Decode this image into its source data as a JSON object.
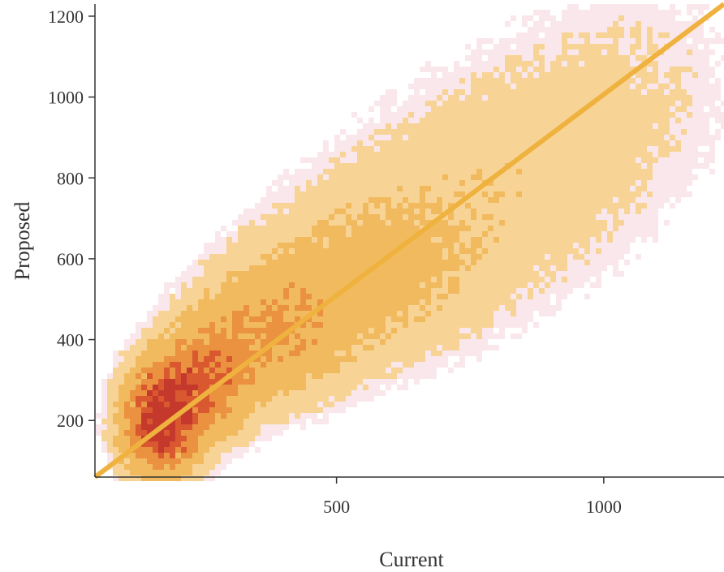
{
  "chart_data": {
    "type": "heatmap",
    "xlabel": "Current",
    "ylabel": "Proposed",
    "xlim": [
      48,
      1225
    ],
    "ylim": [
      60,
      1230
    ],
    "x_ticks": [
      500,
      1000
    ],
    "y_ticks": [
      200,
      400,
      600,
      800,
      1000,
      1200
    ],
    "x_tick_labels": [
      "500",
      "1000"
    ],
    "y_tick_labels": [
      "200",
      "400",
      "600",
      "800",
      "1000",
      "1200"
    ],
    "grid": false,
    "legend": "none",
    "density_colors": [
      "#f9e1e6",
      "#f6d08c",
      "#f0b450",
      "#e8892f",
      "#d64a1d",
      "#c0281a"
    ],
    "density_clusters": [
      {
        "x": 170,
        "y": 200,
        "sx": 45,
        "sy": 85,
        "weight": 1.0
      },
      {
        "x": 255,
        "y": 300,
        "sx": 55,
        "sy": 90,
        "weight": 0.55
      },
      {
        "x": 380,
        "y": 420,
        "sx": 90,
        "sy": 110,
        "weight": 0.35
      },
      {
        "x": 560,
        "y": 560,
        "sx": 130,
        "sy": 140,
        "weight": 0.22
      },
      {
        "x": 800,
        "y": 780,
        "sx": 180,
        "sy": 190,
        "weight": 0.12
      },
      {
        "x": 1050,
        "y": 1050,
        "sx": 160,
        "sy": 200,
        "weight": 0.06
      }
    ],
    "reference_line": {
      "x": [
        48,
        1225
      ],
      "y": [
        60,
        1230
      ],
      "color": "#f0b23e"
    }
  }
}
